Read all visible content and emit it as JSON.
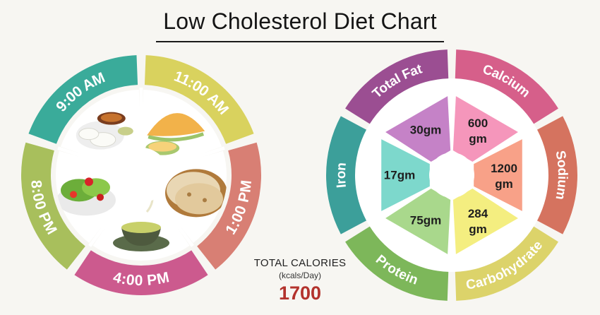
{
  "title": "Low Cholesterol Diet Chart",
  "meal_wheel": {
    "segments": [
      {
        "label": "9:00 AM",
        "color": "#3aab9a",
        "food": "idli-sambar-image"
      },
      {
        "label": "11:00 AM",
        "color": "#d9d25e",
        "food": "melon-image"
      },
      {
        "label": "1:00 PM",
        "color": "#d87f74",
        "food": "roti-image"
      },
      {
        "label": "4:00 PM",
        "color": "#cc5a8e",
        "food": "green-tea-image"
      },
      {
        "label": "8:00 PM",
        "color": "#a8bf5c",
        "food": "salad-image"
      }
    ]
  },
  "nutrient_wheel": {
    "segments": [
      {
        "name": "Total Fat",
        "value": "30gm",
        "outer_color": "#9b4e92",
        "inner_color": "#c582c7"
      },
      {
        "name": "Calcium",
        "value": "600 gm",
        "outer_color": "#d65f8a",
        "inner_color": "#f596bb"
      },
      {
        "name": "Sodium",
        "value": "1200 gm",
        "outer_color": "#d5735f",
        "inner_color": "#f8a188"
      },
      {
        "name": "Carbohydrate",
        "value": "284 gm",
        "outer_color": "#dcd36a",
        "inner_color": "#f4ee80"
      },
      {
        "name": "Protein",
        "value": "75gm",
        "outer_color": "#7db75a",
        "inner_color": "#a9d88c"
      },
      {
        "name": "Iron",
        "value": "17gm",
        "outer_color": "#3c9f9a",
        "inner_color": "#7dd8cc"
      }
    ]
  },
  "calories": {
    "label": "TOTAL CALORIES",
    "unit": "(kcals/Day)",
    "value": "1700"
  }
}
